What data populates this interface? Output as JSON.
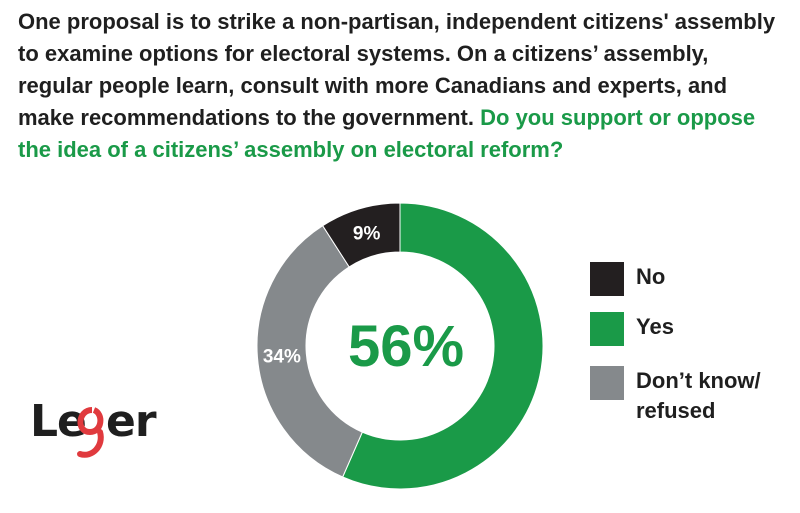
{
  "question": {
    "text": "One proposal is to strike a non-partisan, independent citizens' assembly to examine options for electoral systems. On a citizens’ assembly, regular people learn, consult with more Canadians and experts, and make recommendations to the government.",
    "highlight": "Do you support or oppose the idea of a citizens’ assembly on electoral reform?"
  },
  "chart_data": {
    "type": "pie",
    "donut": true,
    "categories": [
      "Yes",
      "Don’t know/ refused",
      "No"
    ],
    "values": [
      56,
      34,
      9
    ],
    "labels": [
      "56%",
      "34%",
      "9%"
    ],
    "colors": [
      "#1a9a48",
      "#85898c",
      "#231f20"
    ],
    "center_label": "56%",
    "center_color": "#1a9a48",
    "legend_placement": "right"
  },
  "legend": {
    "items": [
      {
        "label": "No",
        "color": "#231f20"
      },
      {
        "label": "Yes",
        "color": "#1a9a48"
      },
      {
        "label": "Don’t know/",
        "label2": "refused",
        "color": "#85898c"
      }
    ]
  },
  "logo": {
    "text": "Leger",
    "accent": "#e03a3e"
  }
}
